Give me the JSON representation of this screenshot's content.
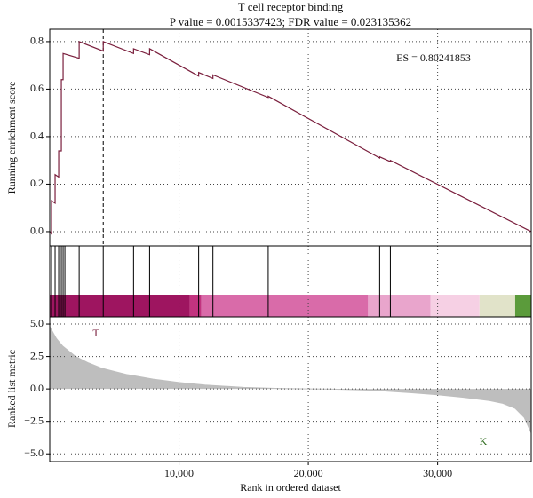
{
  "chart_data": {
    "type": "gsea",
    "title": "T cell receptor binding",
    "subtitle": "P value = 0.0015337423; FDR value = 0.023135362",
    "annotation": "ES = 0.80241853",
    "x_label": "Rank in ordered dataset",
    "xlim": [
      0,
      37240
    ],
    "xticks": [
      {
        "value": 10000,
        "label": "10,000"
      },
      {
        "value": 20000,
        "label": "20,000"
      },
      {
        "value": 30000,
        "label": "30,000"
      }
    ],
    "grid": true,
    "es": {
      "y_label": "Running enrichment score",
      "color": "#7a1f3d",
      "ylim": [
        -0.06,
        0.852
      ],
      "yticks": [
        {
          "value": 0,
          "label": "0.0"
        },
        0.2,
        0.4,
        0.6,
        0.8
      ],
      "peak_x": 4138,
      "x": [
        0,
        138,
        138,
        414,
        414,
        690,
        690,
        897,
        897,
        1034,
        1034,
        2276,
        2276,
        4138,
        4138,
        6483,
        6483,
        7724,
        7724,
        11517,
        11517,
        12621,
        12621,
        16897,
        16897,
        25517,
        25517,
        26345,
        26345,
        37240
      ],
      "values": [
        0,
        -0.01,
        0.13,
        0.12,
        0.24,
        0.23,
        0.34,
        0.34,
        0.64,
        0.64,
        0.75,
        0.73,
        0.8,
        0.76,
        0.8,
        0.75,
        0.77,
        0.745,
        0.77,
        0.655,
        0.67,
        0.645,
        0.66,
        0.565,
        0.57,
        0.31,
        0.315,
        0.295,
        0.3,
        0
      ]
    },
    "hits": {
      "color": "#000000",
      "x": [
        138,
        414,
        690,
        897,
        1034,
        1172,
        2276,
        4138,
        6483,
        7724,
        11517,
        12621,
        16897,
        25517,
        26345
      ]
    },
    "color_bar": [
      {
        "start": 0,
        "end": 10828,
        "color": "#9e1560"
      },
      {
        "start": 10828,
        "end": 11724,
        "color": "#c2337f"
      },
      {
        "start": 11724,
        "end": 24621,
        "color": "#d96ba9"
      },
      {
        "start": 24621,
        "end": 29448,
        "color": "#e9a5cc"
      },
      {
        "start": 29448,
        "end": 33241,
        "color": "#f6d0e4"
      },
      {
        "start": 33241,
        "end": 36000,
        "color": "#e1e3c9"
      },
      {
        "start": 36000,
        "end": 37240,
        "color": "#5b9b3b"
      }
    ],
    "metric": {
      "y_label": "Ranked list metric",
      "color": "#bebebe",
      "ylim": [
        -5.6,
        5.55
      ],
      "yticks": [
        {
          "value": 5,
          "label": "5.0"
        },
        2.5,
        {
          "value": 0,
          "label": "0.0"
        },
        {
          "value": -2.5,
          "label": "−2.5"
        },
        {
          "value": -5,
          "label": "−5.0"
        }
      ],
      "x": [
        0,
        500,
        1000,
        2000,
        3000,
        4000,
        6000,
        8000,
        10000,
        12000,
        15000,
        18000,
        20000,
        22000,
        25000,
        28000,
        30000,
        32000,
        34000,
        35000,
        36000,
        36700,
        37240
      ],
      "values": [
        4.8,
        3.9,
        3.3,
        2.5,
        2.0,
        1.6,
        1.1,
        0.75,
        0.5,
        0.3,
        0.12,
        0.03,
        0,
        -0.02,
        -0.1,
        -0.3,
        -0.45,
        -0.65,
        -0.9,
        -1.1,
        -1.5,
        -2.2,
        -3.4
      ],
      "labels": [
        {
          "text": "T",
          "color": "#7a1f3d"
        },
        {
          "text": "K",
          "color": "#2e6b1e"
        }
      ]
    }
  }
}
